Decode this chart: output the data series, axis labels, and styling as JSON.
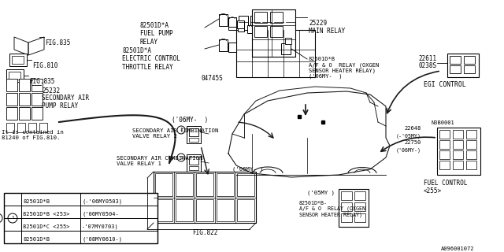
{
  "bg_color": "#ffffff",
  "line_color": "#1a1a1a",
  "fig_width": 6.4,
  "fig_height": 3.2,
  "dpi": 100,
  "part_number_footer": "A096001072",
  "labels": {
    "fig835_top": "FIG.835",
    "fig810": "FIG.810",
    "fig835_bot": "FIG.835",
    "part25232": "25232",
    "secondary_air_pump_relay": "SECONDARY AIR\nPUMP RELAY",
    "contained_note": "It is contained in\n81240 of FIG.810.",
    "part82501da_fuel": "82501D*A\nFUEL PUMP\nRELAY",
    "part82501da_throttle": "82501D*A\nELECTRIC CONTROL\nTHROTTLE RELAY",
    "part04745": "04745S",
    "part25229": "25229\nMAIN RELAY",
    "part82501db_top": "82501D*B\nA/F & O  RELAY (OXGEN\nSENSOR HEATER RELAY)\n('06MY-  )",
    "secondary_air_combo2": "SECONDARY AIR COMBINATION\nVALVE RELAY 2",
    "secondary_air_combo1": "SECONDARY AIR COMBINATION\nVALVE RELAY 1",
    "o6my_top": "('06MY-  )",
    "o6my_mid": "('06MY- )",
    "o5my": "('05MY )",
    "fig822": "FIG.822",
    "part22611": "22611",
    "part0238s": "0238S",
    "egi_control": "EGI CONTROL",
    "partN3B0001": "N3B0001",
    "part22648": "22648\n(-'05MY)\n22750\n('06MY-)",
    "fuel_control": "FUEL CONTROL\n<255>",
    "part82501db_bot": "82501D*B-\nA/F & O  RELAY (OXGEN\nSENSOR HEATER RELAY)",
    "circle1": "①"
  }
}
